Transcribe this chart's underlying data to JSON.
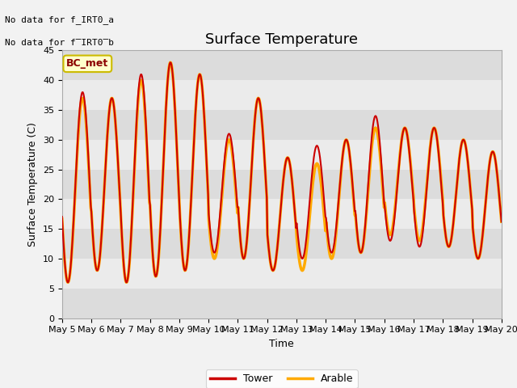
{
  "title": "Surface Temperature",
  "xlabel": "Time",
  "ylabel": "Surface Temperature (C)",
  "ylim": [
    0,
    45
  ],
  "x_tick_labels": [
    "May 5",
    "May 6",
    "May 7",
    "May 8",
    "May 9",
    "May 10",
    "May 11",
    "May 12",
    "May 13",
    "May 14",
    "May 15",
    "May 16",
    "May 17",
    "May 18",
    "May 19",
    "May 20"
  ],
  "tower_color": "#cc0000",
  "arable_color": "#ffaa00",
  "background_color": "#f2f2f2",
  "plot_bg_color": "#e8e8e8",
  "band_light": "#ebebeb",
  "band_dark": "#dcdcdc",
  "annotation_text1": "No data for f_IRT0_a",
  "annotation_text2": "No data for f̅IRT0̅b",
  "legend_box_color": "#ffffcc",
  "legend_box_edge": "#ccbb00",
  "legend_box_text": "BC_met",
  "tower_lw": 1.5,
  "arable_lw": 2.5,
  "title_fontsize": 13,
  "axis_label_fontsize": 9,
  "tick_fontsize": 8,
  "annotation_fontsize": 8,
  "legend_fontsize": 9,
  "peaks_tower": [
    38,
    37,
    41,
    43,
    41,
    31,
    37,
    27,
    29,
    30,
    34,
    32,
    32,
    30,
    28
  ],
  "troughs_tower": [
    6,
    8,
    6,
    7,
    8,
    11,
    10,
    8,
    10,
    11,
    11,
    13,
    12,
    12,
    10
  ],
  "peaks_arable": [
    37,
    37,
    40,
    43,
    41,
    30,
    37,
    27,
    26,
    30,
    32,
    32,
    32,
    30,
    28
  ],
  "troughs_arable": [
    6,
    8,
    6,
    7,
    8,
    10,
    10,
    8,
    8,
    10,
    11,
    14,
    13,
    12,
    10
  ]
}
